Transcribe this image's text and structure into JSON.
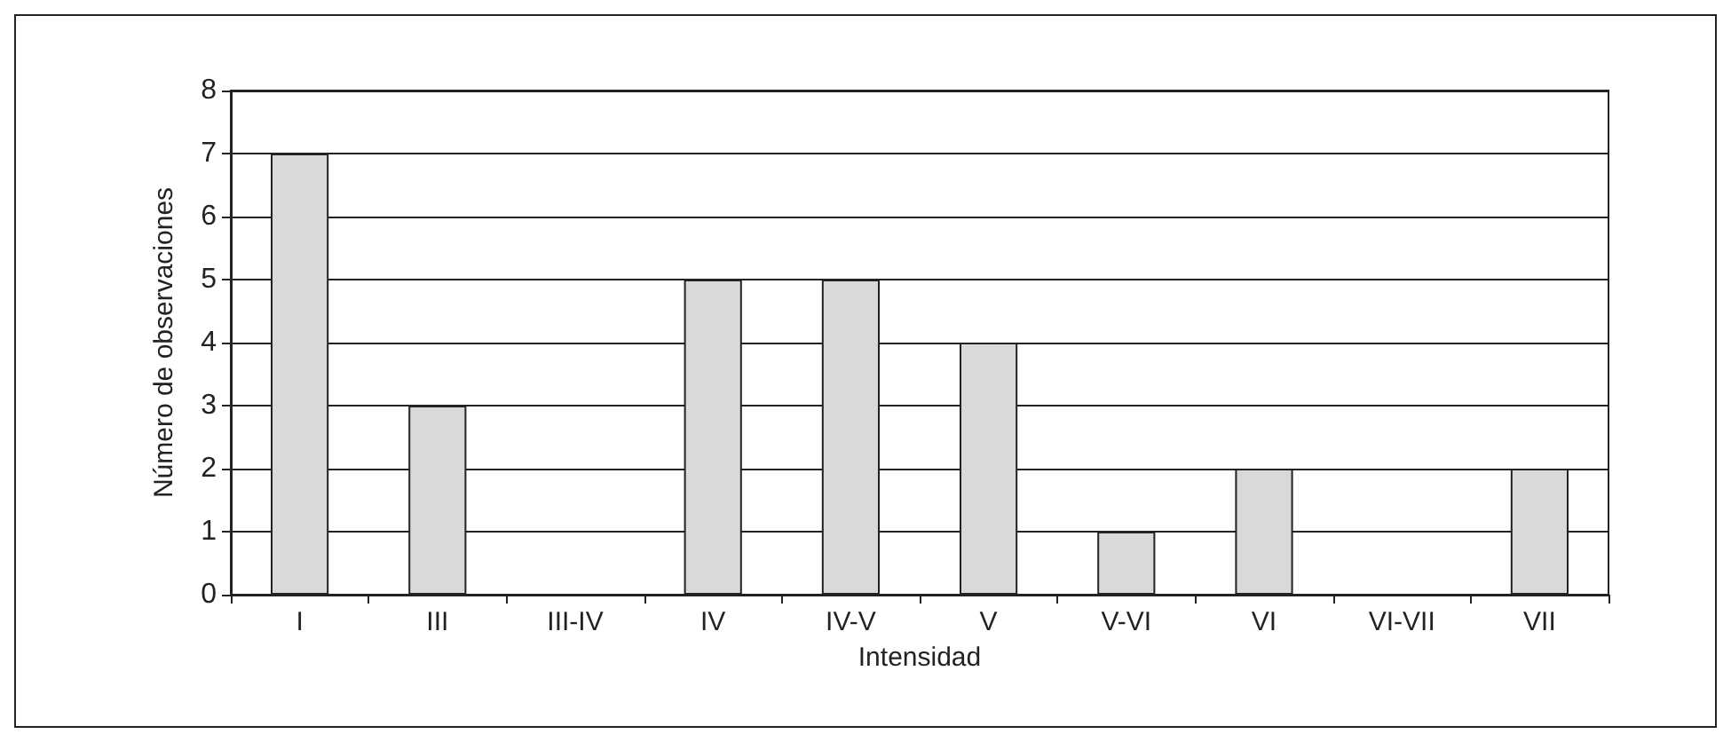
{
  "chart_data": {
    "type": "bar",
    "xlabel": "Intensidad",
    "ylabel": "Número de observaciones",
    "categories": [
      "I",
      "III",
      "III-IV",
      "IV",
      "IV-V",
      "V",
      "V-VI",
      "VI",
      "VI-VII",
      "VII"
    ],
    "values": [
      7,
      3,
      0,
      5,
      5,
      4,
      1,
      2,
      0,
      2
    ],
    "color": "#d9d9d9",
    "ylim": [
      0,
      8
    ],
    "yticks": [
      0,
      1,
      2,
      3,
      4,
      5,
      6,
      7,
      8
    ],
    "grid": "y"
  }
}
